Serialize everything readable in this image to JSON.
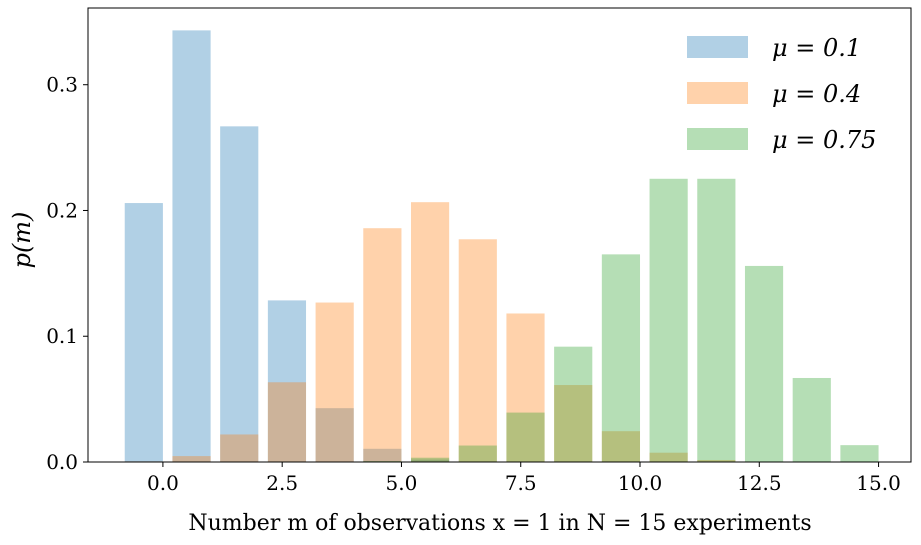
{
  "chart_data": {
    "type": "bar",
    "title": "",
    "xlabel": "Number m of observations x = 1 in N = 15 experiments",
    "ylabel": "p(m)",
    "xlim": [
      -1.57,
      15.68
    ],
    "ylim": [
      0,
      0.361
    ],
    "xticks": [
      0.0,
      2.5,
      5.0,
      7.5,
      10.0,
      12.5,
      15.0
    ],
    "xtick_labels": [
      "0.0",
      "2.5",
      "5.0",
      "7.5",
      "10.0",
      "12.5",
      "15.0"
    ],
    "yticks": [
      0.0,
      0.1,
      0.2,
      0.3
    ],
    "ytick_labels": [
      "0.0",
      "0.1",
      "0.2",
      "0.3"
    ],
    "grid": false,
    "legend_position": "top-right",
    "categories": [
      0,
      1,
      2,
      3,
      4,
      5,
      6,
      7,
      8,
      9,
      10,
      11,
      12,
      13,
      14,
      15
    ],
    "series": [
      {
        "name": "μ = 0.1",
        "color": "#1f77b4",
        "values": [
          0.2059,
          0.3432,
          0.2669,
          0.1285,
          0.0428,
          0.0105,
          0.0019,
          0.0003,
          0,
          0,
          0,
          0,
          0,
          0,
          0,
          0
        ]
      },
      {
        "name": "μ = 0.4",
        "color": "#ff7f0e",
        "values": [
          0.0005,
          0.0047,
          0.0219,
          0.0634,
          0.1268,
          0.1859,
          0.2066,
          0.1771,
          0.1181,
          0.0612,
          0.0245,
          0.0074,
          0.0016,
          0.0003,
          0,
          0
        ]
      },
      {
        "name": "μ = 0.75",
        "color": "#2ca02c",
        "values": [
          0,
          0,
          0,
          0,
          0.0001,
          0.0007,
          0.0034,
          0.0131,
          0.0393,
          0.0917,
          0.1651,
          0.2252,
          0.2252,
          0.1559,
          0.0668,
          0.0134
        ]
      }
    ]
  }
}
